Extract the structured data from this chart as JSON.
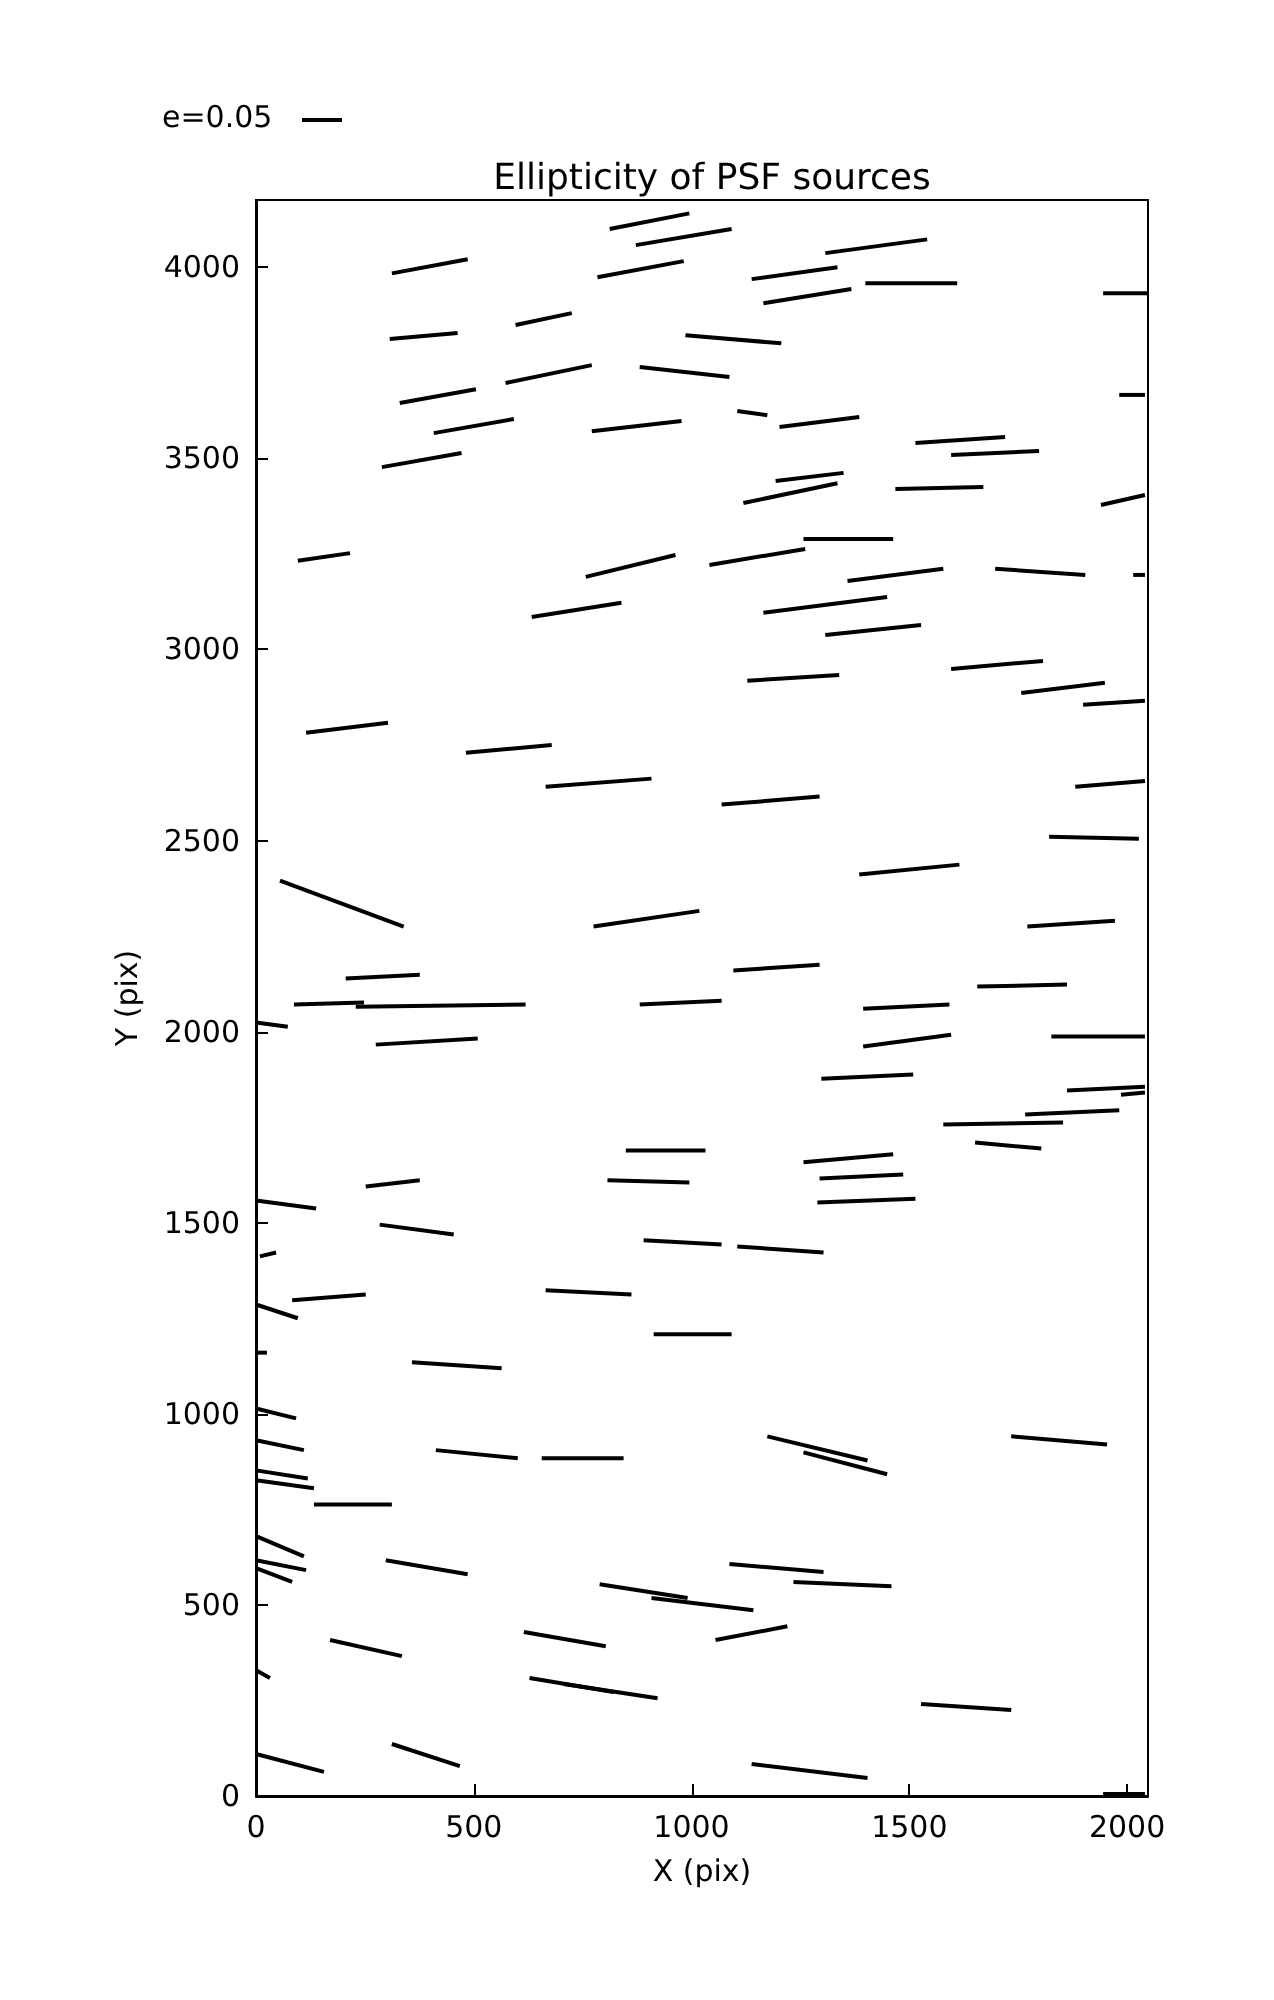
{
  "chart_data": {
    "type": "line",
    "title": "Ellipticity of PSF sources",
    "xlabel": "X (pix)",
    "ylabel": "Y (pix)",
    "annotations": [
      "e=0.05"
    ],
    "xlim": [
      0,
      2048
    ],
    "xticks": [
      0,
      500,
      1000,
      1500,
      2000
    ],
    "ylim": [
      0,
      4176
    ],
    "yticks": [
      0,
      500,
      1000,
      1500,
      2000,
      2500,
      3000,
      3500,
      4000
    ],
    "grid": false,
    "marker": "none",
    "line_style": "solid",
    "series": [
      {
        "color": "#000000",
        "x": [
          812,
          995
        ],
        "values": [
          4100,
          4141
        ]
      },
      {
        "color": "#000000",
        "x": [
          872,
          1092
        ],
        "values": [
          4058,
          4100
        ]
      },
      {
        "color": "#000000",
        "x": [
          312,
          486
        ],
        "values": [
          3984,
          4021
        ]
      },
      {
        "color": "#000000",
        "x": [
          784,
          982
        ],
        "values": [
          3974,
          4016
        ]
      },
      {
        "color": "#000000",
        "x": [
          1307,
          1541
        ],
        "values": [
          4037,
          4073
        ]
      },
      {
        "color": "#000000",
        "x": [
          1138,
          1335
        ],
        "values": [
          3969,
          4000
        ]
      },
      {
        "color": "#000000",
        "x": [
          1399,
          1610
        ],
        "values": [
          3958,
          3958
        ]
      },
      {
        "color": "#000000",
        "x": [
          1165,
          1367
        ],
        "values": [
          3906,
          3943
        ]
      },
      {
        "color": "#000000",
        "x": [
          1945,
          2046
        ],
        "values": [
          3932,
          3932
        ]
      },
      {
        "color": "#000000",
        "x": [
          307,
          463
        ],
        "values": [
          3812,
          3828
        ]
      },
      {
        "color": "#000000",
        "x": [
          596,
          725
        ],
        "values": [
          3849,
          3880
        ]
      },
      {
        "color": "#000000",
        "x": [
          986,
          1206
        ],
        "values": [
          3822,
          3801
        ]
      },
      {
        "color": "#000000",
        "x": [
          330,
          505
        ],
        "values": [
          3645,
          3681
        ]
      },
      {
        "color": "#000000",
        "x": [
          573,
          771
        ],
        "values": [
          3697,
          3744
        ]
      },
      {
        "color": "#000000",
        "x": [
          881,
          1087
        ],
        "values": [
          3739,
          3713
        ]
      },
      {
        "color": "#000000",
        "x": [
          1982,
          2041
        ],
        "values": [
          3666,
          3666
        ]
      },
      {
        "color": "#000000",
        "x": [
          408,
          592
        ],
        "values": [
          3566,
          3603
        ]
      },
      {
        "color": "#000000",
        "x": [
          771,
          977
        ],
        "values": [
          3571,
          3598
        ]
      },
      {
        "color": "#000000",
        "x": [
          1105,
          1174
        ],
        "values": [
          3624,
          3613
        ]
      },
      {
        "color": "#000000",
        "x": [
          1202,
          1385
        ],
        "values": [
          3582,
          3608
        ]
      },
      {
        "color": "#000000",
        "x": [
          1514,
          1720
        ],
        "values": [
          3540,
          3556
        ]
      },
      {
        "color": "#000000",
        "x": [
          1596,
          1798
        ],
        "values": [
          3509,
          3519
        ]
      },
      {
        "color": "#000000",
        "x": [
          289,
          472
        ],
        "values": [
          3477,
          3514
        ]
      },
      {
        "color": "#000000",
        "x": [
          1193,
          1349
        ],
        "values": [
          3441,
          3462
        ]
      },
      {
        "color": "#000000",
        "x": [
          1119,
          1335
        ],
        "values": [
          3383,
          3435
        ]
      },
      {
        "color": "#000000",
        "x": [
          1468,
          1670
        ],
        "values": [
          3420,
          3425
        ]
      },
      {
        "color": "#000000",
        "x": [
          1940,
          2041
        ],
        "values": [
          3378,
          3404
        ]
      },
      {
        "color": "#000000",
        "x": [
          96,
          216
        ],
        "values": [
          3232,
          3252
        ]
      },
      {
        "color": "#000000",
        "x": [
          1257,
          1463
        ],
        "values": [
          3289,
          3289
        ]
      },
      {
        "color": "#000000",
        "x": [
          757,
          963
        ],
        "values": [
          3190,
          3247
        ]
      },
      {
        "color": "#000000",
        "x": [
          1041,
          1261
        ],
        "values": [
          3221,
          3263
        ]
      },
      {
        "color": "#000000",
        "x": [
          1358,
          1578
        ],
        "values": [
          3179,
          3211
        ]
      },
      {
        "color": "#000000",
        "x": [
          1697,
          1904
        ],
        "values": [
          3211,
          3195
        ]
      },
      {
        "color": "#000000",
        "x": [
          2014,
          2041
        ],
        "values": [
          3195,
          3195
        ]
      },
      {
        "color": "#000000",
        "x": [
          633,
          839
        ],
        "values": [
          3085,
          3122
        ]
      },
      {
        "color": "#000000",
        "x": [
          1165,
          1449
        ],
        "values": [
          3096,
          3137
        ]
      },
      {
        "color": "#000000",
        "x": [
          1307,
          1527
        ],
        "values": [
          3038,
          3064
        ]
      },
      {
        "color": "#000000",
        "x": [
          1128,
          1339
        ],
        "values": [
          2918,
          2933
        ]
      },
      {
        "color": "#000000",
        "x": [
          1596,
          1807
        ],
        "values": [
          2949,
          2970
        ]
      },
      {
        "color": "#000000",
        "x": [
          1757,
          1949
        ],
        "values": [
          2886,
          2913
        ]
      },
      {
        "color": "#000000",
        "x": [
          1899,
          2041
        ],
        "values": [
          2855,
          2866
        ]
      },
      {
        "color": "#000000",
        "x": [
          115,
          303
        ],
        "values": [
          2782,
          2808
        ]
      },
      {
        "color": "#000000",
        "x": [
          482,
          679
        ],
        "values": [
          2730,
          2750
        ]
      },
      {
        "color": "#000000",
        "x": [
          665,
          908
        ],
        "values": [
          2641,
          2662
        ]
      },
      {
        "color": "#000000",
        "x": [
          1069,
          1294
        ],
        "values": [
          2594,
          2615
        ]
      },
      {
        "color": "#000000",
        "x": [
          1881,
          2041
        ],
        "values": [
          2641,
          2656
        ]
      },
      {
        "color": "#000000",
        "x": [
          1821,
          2027
        ],
        "values": [
          2510,
          2505
        ]
      },
      {
        "color": "#000000",
        "x": [
          55,
          339
        ],
        "values": [
          2395,
          2275
        ]
      },
      {
        "color": "#000000",
        "x": [
          1385,
          1615
        ],
        "values": [
          2411,
          2437
        ]
      },
      {
        "color": "#000000",
        "x": [
          775,
          1018
        ],
        "values": [
          2275,
          2316
        ]
      },
      {
        "color": "#000000",
        "x": [
          1771,
          1972
        ],
        "values": [
          2275,
          2290
        ]
      },
      {
        "color": "#000000",
        "x": [
          206,
          376
        ],
        "values": [
          2139,
          2149
        ]
      },
      {
        "color": "#000000",
        "x": [
          1096,
          1294
        ],
        "values": [
          2160,
          2175
        ]
      },
      {
        "color": "#000000",
        "x": [
          1656,
          1862
        ],
        "values": [
          2118,
          2123
        ]
      },
      {
        "color": "#000000",
        "x": [
          87,
          248
        ],
        "values": [
          2071,
          2076
        ]
      },
      {
        "color": "#000000",
        "x": [
          229,
          619
        ],
        "values": [
          2065,
          2071
        ]
      },
      {
        "color": "#000000",
        "x": [
          881,
          1069
        ],
        "values": [
          2071,
          2081
        ]
      },
      {
        "color": "#000000",
        "x": [
          1394,
          1592
        ],
        "values": [
          2060,
          2071
        ]
      },
      {
        "color": "#000000",
        "x": [
          0,
          73
        ],
        "values": [
          2024,
          2013
        ]
      },
      {
        "color": "#000000",
        "x": [
          275,
          509
        ],
        "values": [
          1966,
          1982
        ]
      },
      {
        "color": "#000000",
        "x": [
          1394,
          1596
        ],
        "values": [
          1961,
          1992
        ]
      },
      {
        "color": "#000000",
        "x": [
          1826,
          2041
        ],
        "values": [
          1987,
          1987
        ]
      },
      {
        "color": "#000000",
        "x": [
          1298,
          1509
        ],
        "values": [
          1877,
          1888
        ]
      },
      {
        "color": "#000000",
        "x": [
          1862,
          2041
        ],
        "values": [
          1846,
          1856
        ]
      },
      {
        "color": "#000000",
        "x": [
          1986,
          2041
        ],
        "values": [
          1835,
          1841
        ]
      },
      {
        "color": "#000000",
        "x": [
          1766,
          1982
        ],
        "values": [
          1783,
          1794
        ]
      },
      {
        "color": "#000000",
        "x": [
          1578,
          1853
        ],
        "values": [
          1757,
          1762
        ]
      },
      {
        "color": "#000000",
        "x": [
          1651,
          1803
        ],
        "values": [
          1710,
          1694
        ]
      },
      {
        "color": "#000000",
        "x": [
          849,
          1032
        ],
        "values": [
          1689,
          1689
        ]
      },
      {
        "color": "#000000",
        "x": [
          1257,
          1463
        ],
        "values": [
          1658,
          1679
        ]
      },
      {
        "color": "#000000",
        "x": [
          807,
          995
        ],
        "values": [
          1611,
          1605
        ]
      },
      {
        "color": "#000000",
        "x": [
          1294,
          1486
        ],
        "values": [
          1616,
          1626
        ]
      },
      {
        "color": "#000000",
        "x": [
          252,
          376
        ],
        "values": [
          1595,
          1611
        ]
      },
      {
        "color": "#000000",
        "x": [
          1289,
          1514
        ],
        "values": [
          1553,
          1563
        ]
      },
      {
        "color": "#000000",
        "x": [
          0,
          138
        ],
        "values": [
          1558,
          1537
        ]
      },
      {
        "color": "#000000",
        "x": [
          284,
          454
        ],
        "values": [
          1495,
          1469
        ]
      },
      {
        "color": "#000000",
        "x": [
          890,
          1069
        ],
        "values": [
          1454,
          1443
        ]
      },
      {
        "color": "#000000",
        "x": [
          1105,
          1303
        ],
        "values": [
          1438,
          1422
        ]
      },
      {
        "color": "#000000",
        "x": [
          9,
          46
        ],
        "values": [
          1412,
          1422
        ]
      },
      {
        "color": "#000000",
        "x": [
          83,
          252
        ],
        "values": [
          1297,
          1312
        ]
      },
      {
        "color": "#000000",
        "x": [
          665,
          862
        ],
        "values": [
          1323,
          1312
        ]
      },
      {
        "color": "#000000",
        "x": [
          0,
          96
        ],
        "values": [
          1286,
          1250
        ]
      },
      {
        "color": "#000000",
        "x": [
          913,
          1092
        ],
        "values": [
          1208,
          1208
        ]
      },
      {
        "color": "#000000",
        "x": [
          0,
          25
        ],
        "values": [
          1160,
          1160
        ]
      },
      {
        "color": "#000000",
        "x": [
          358,
          564
        ],
        "values": [
          1135,
          1119
        ]
      },
      {
        "color": "#000000",
        "x": [
          0,
          92
        ],
        "values": [
          1014,
          988
        ]
      },
      {
        "color": "#000000",
        "x": [
          1174,
          1404
        ],
        "values": [
          941,
          878
        ]
      },
      {
        "color": "#000000",
        "x": [
          1257,
          1449
        ],
        "values": [
          899,
          842
        ]
      },
      {
        "color": "#000000",
        "x": [
          1734,
          1954
        ],
        "values": [
          941,
          920
        ]
      },
      {
        "color": "#000000",
        "x": [
          0,
          110
        ],
        "values": [
          931,
          905
        ]
      },
      {
        "color": "#000000",
        "x": [
          413,
          601
        ],
        "values": [
          905,
          884
        ]
      },
      {
        "color": "#000000",
        "x": [
          656,
          844
        ],
        "values": [
          884,
          884
        ]
      },
      {
        "color": "#000000",
        "x": [
          0,
          119
        ],
        "values": [
          852,
          831
        ]
      },
      {
        "color": "#000000",
        "x": [
          0,
          133
        ],
        "values": [
          826,
          805
        ]
      },
      {
        "color": "#000000",
        "x": [
          133,
          312
        ],
        "values": [
          763,
          763
        ]
      },
      {
        "color": "#000000",
        "x": [
          0,
          110
        ],
        "values": [
          680,
          627
        ]
      },
      {
        "color": "#000000",
        "x": [
          0,
          115
        ],
        "values": [
          617,
          591
        ]
      },
      {
        "color": "#000000",
        "x": [
          0,
          83
        ],
        "values": [
          596,
          560
        ]
      },
      {
        "color": "#000000",
        "x": [
          298,
          486
        ],
        "values": [
          617,
          580
        ]
      },
      {
        "color": "#000000",
        "x": [
          1087,
          1303
        ],
        "values": [
          607,
          586
        ]
      },
      {
        "color": "#000000",
        "x": [
          1234,
          1459
        ],
        "values": [
          560,
          549
        ]
      },
      {
        "color": "#000000",
        "x": [
          789,
          991
        ],
        "values": [
          554,
          518
        ]
      },
      {
        "color": "#000000",
        "x": [
          908,
          1142
        ],
        "values": [
          518,
          486
        ]
      },
      {
        "color": "#000000",
        "x": [
          170,
          335
        ],
        "values": [
          408,
          366
        ]
      },
      {
        "color": "#000000",
        "x": [
          615,
          803
        ],
        "values": [
          429,
          392
        ]
      },
      {
        "color": "#000000",
        "x": [
          1055,
          1220
        ],
        "values": [
          408,
          444
        ]
      },
      {
        "color": "#000000",
        "x": [
          0,
          32
        ],
        "values": [
          329,
          309
        ]
      },
      {
        "color": "#000000",
        "x": [
          628,
          821
        ],
        "values": [
          309,
          272
        ]
      },
      {
        "color": "#000000",
        "x": [
          706,
          922
        ],
        "values": [
          293,
          256
        ]
      },
      {
        "color": "#000000",
        "x": [
          1527,
          1734
        ],
        "values": [
          241,
          225
        ]
      },
      {
        "color": "#000000",
        "x": [
          0,
          156
        ],
        "values": [
          110,
          63
        ]
      },
      {
        "color": "#000000",
        "x": [
          312,
          468
        ],
        "values": [
          136,
          78
        ]
      },
      {
        "color": "#000000",
        "x": [
          1138,
          1404
        ],
        "values": [
          84,
          47
        ]
      },
      {
        "color": "#000000",
        "x": [
          1945,
          2041
        ],
        "values": [
          5,
          5
        ]
      }
    ]
  }
}
